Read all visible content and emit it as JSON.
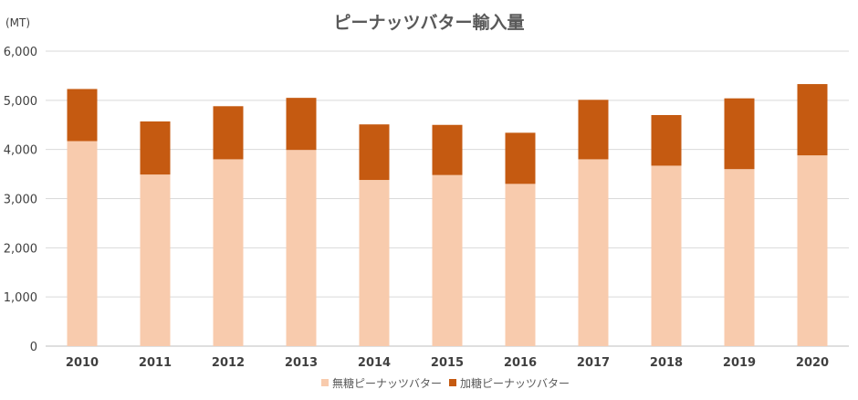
{
  "chart_data": {
    "type": "bar",
    "stacked": true,
    "title": "ピーナッツバター輸入量",
    "unit_label": "(MT)",
    "categories": [
      "2010",
      "2011",
      "2012",
      "2013",
      "2014",
      "2015",
      "2016",
      "2017",
      "2018",
      "2019",
      "2020"
    ],
    "series": [
      {
        "name": "無糖ピーナッツバター",
        "color": "#f8cbad",
        "values": [
          4170,
          3490,
          3800,
          3990,
          3380,
          3480,
          3300,
          3800,
          3670,
          3600,
          3880
        ]
      },
      {
        "name": "加糖ピーナッツバター",
        "color": "#c55a11",
        "values": [
          1060,
          1080,
          1080,
          1060,
          1130,
          1020,
          1040,
          1210,
          1030,
          1440,
          1450
        ]
      }
    ],
    "ylim": [
      0,
      6000
    ],
    "yticks": [
      0,
      1000,
      2000,
      3000,
      4000,
      5000,
      6000
    ],
    "ytick_labels": [
      "0",
      "1,000",
      "2,000",
      "3,000",
      "4,000",
      "5,000",
      "6,000"
    ],
    "grid": true,
    "legend_position": "bottom"
  }
}
